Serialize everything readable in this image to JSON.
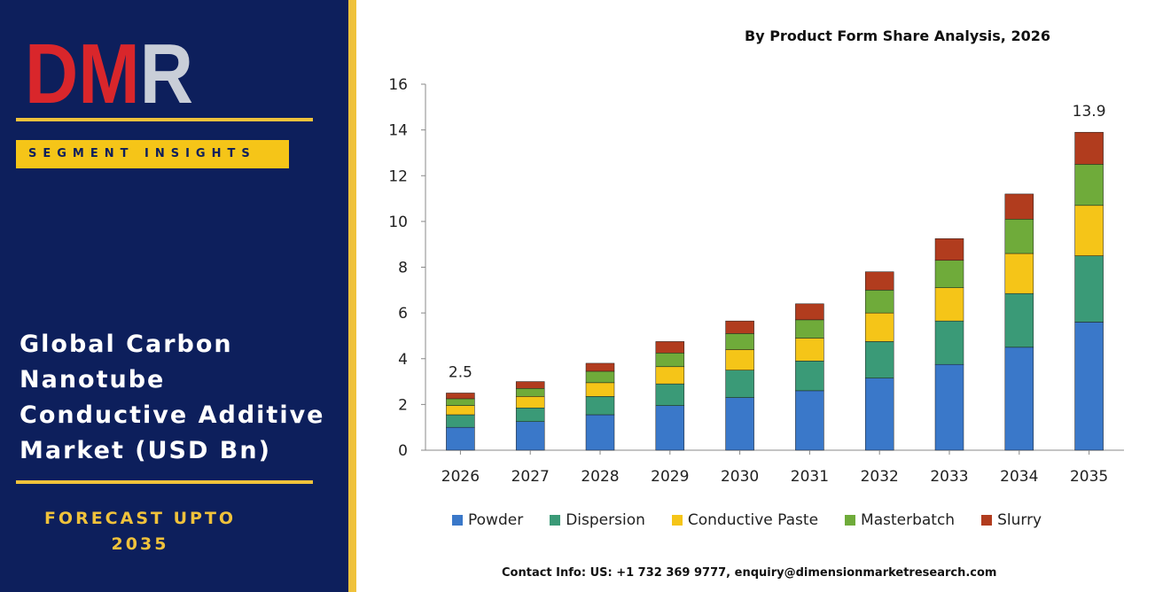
{
  "brand": {
    "logo_text": "DMR",
    "segment_label": "SEGMENT INSIGHTS",
    "title": "Global Carbon Nanotube Conductive Additive Market (USD Bn)",
    "forecast_line1": "FORECAST UPTO",
    "forecast_line2": "2035",
    "colors": {
      "panel": "#0d1f5c",
      "gold": "#f0c23b",
      "logo_red": "#d9262b",
      "logo_grey": "#c9ced8"
    }
  },
  "footer": {
    "contact": "Contact Info: US: +1 732 369 9777, enquiry@dimensionmarketresearch.com"
  },
  "chart_data": {
    "type": "bar",
    "stacked": true,
    "title": "By Product Form Share Analysis, 2026",
    "xlabel": "",
    "ylabel": "",
    "ylim": [
      0,
      16
    ],
    "yticks": [
      0,
      2,
      4,
      6,
      8,
      10,
      12,
      14,
      16
    ],
    "grid": false,
    "legend_position": "bottom",
    "categories": [
      "2026",
      "2027",
      "2028",
      "2029",
      "2030",
      "2031",
      "2032",
      "2033",
      "2034",
      "2035"
    ],
    "series": [
      {
        "name": "Powder",
        "color": "#3a78c9",
        "values": [
          1.0,
          1.25,
          1.55,
          1.95,
          2.3,
          2.6,
          3.15,
          3.75,
          4.5,
          5.6
        ]
      },
      {
        "name": "Dispersion",
        "color": "#3a9a77",
        "values": [
          0.55,
          0.6,
          0.8,
          0.95,
          1.2,
          1.3,
          1.6,
          1.9,
          2.35,
          2.9
        ]
      },
      {
        "name": "Conductive Paste",
        "color": "#f5c518",
        "values": [
          0.4,
          0.5,
          0.6,
          0.75,
          0.9,
          1.0,
          1.25,
          1.45,
          1.75,
          2.2
        ]
      },
      {
        "name": "Masterbatch",
        "color": "#6fab3a",
        "values": [
          0.3,
          0.35,
          0.5,
          0.6,
          0.7,
          0.8,
          1.0,
          1.2,
          1.5,
          1.8
        ]
      },
      {
        "name": "Slurry",
        "color": "#b13c1e",
        "values": [
          0.25,
          0.3,
          0.35,
          0.5,
          0.55,
          0.7,
          0.8,
          0.95,
          1.1,
          1.4
        ]
      }
    ],
    "annotations": [
      {
        "category": "2026",
        "text": "2.5"
      },
      {
        "category": "2035",
        "text": "13.9"
      }
    ]
  }
}
